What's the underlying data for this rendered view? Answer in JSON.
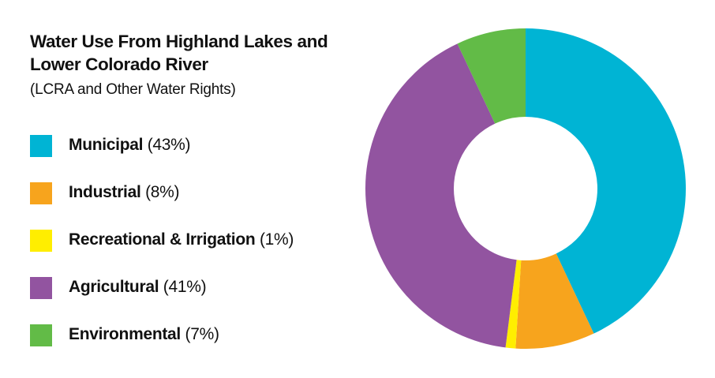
{
  "chart_data": {
    "type": "pie",
    "variant": "donut",
    "title": "Water Use From Highland Lakes and Lower Colorado River",
    "subtitle": "(LCRA and Other Water Rights)",
    "legend_position": "left",
    "slices": [
      {
        "name": "Municipal",
        "label": "(43%)",
        "value": 43,
        "color": "#00b4d4"
      },
      {
        "name": "Industrial",
        "label": "(8%)",
        "value": 8,
        "color": "#f7a41d"
      },
      {
        "name": "Recreational & Irrigation",
        "label": "(1%)",
        "value": 1,
        "color": "#ffee00"
      },
      {
        "name": "Agricultural",
        "label": "(41%)",
        "value": 41,
        "color": "#9254a0"
      },
      {
        "name": "Environmental",
        "label": " (7%)",
        "value": 7,
        "color": "#62bb47"
      }
    ]
  }
}
